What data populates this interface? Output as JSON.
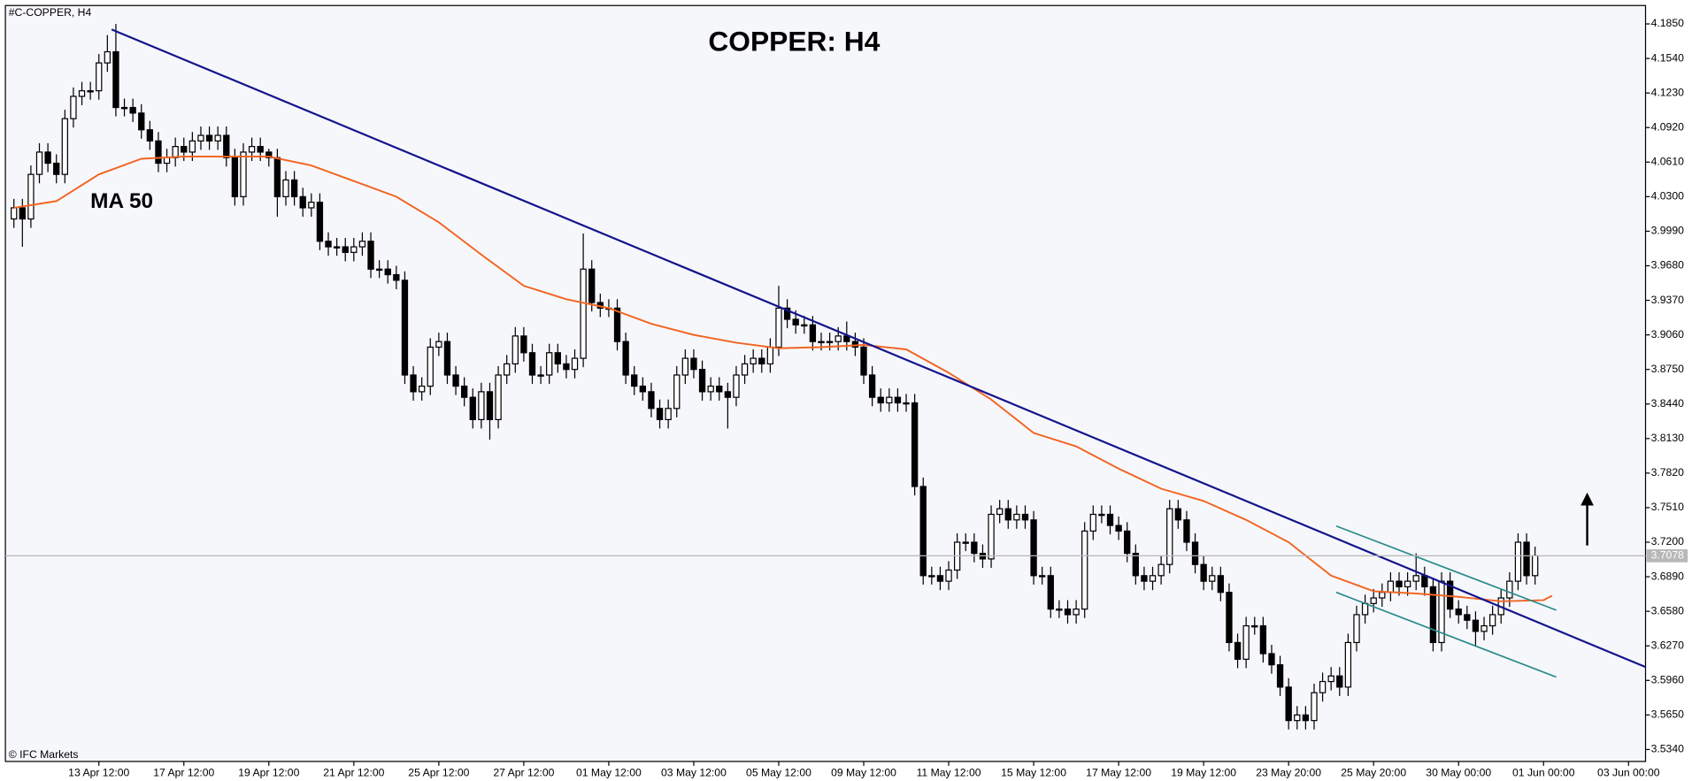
{
  "chart_data": {
    "type": "candlestick",
    "title": "COPPER: H4",
    "symbol_label": "#C-COPPER, H4",
    "watermark": "© IFC Markets",
    "annotations": [
      {
        "text": "MA 50",
        "x": 9,
        "y": 4.025
      }
    ],
    "last_price_label": "3.7078",
    "xlim": [
      -1,
      192
    ],
    "xticks": [
      {
        "value": 10,
        "label": "13 Apr 12:00"
      },
      {
        "value": 20,
        "label": "17 Apr 12:00"
      },
      {
        "value": 30,
        "label": "19 Apr 12:00"
      },
      {
        "value": 40,
        "label": "21 Apr 12:00"
      },
      {
        "value": 50,
        "label": "25 Apr 12:00"
      },
      {
        "value": 60,
        "label": "27 Apr 12:00"
      },
      {
        "value": 70,
        "label": "01 May 12:00"
      },
      {
        "value": 80,
        "label": "03 May 12:00"
      },
      {
        "value": 90,
        "label": "05 May 12:00"
      },
      {
        "value": 100,
        "label": "09 May 12:00"
      },
      {
        "value": 110,
        "label": "11 May 12:00"
      },
      {
        "value": 120,
        "label": "15 May 12:00"
      },
      {
        "value": 130,
        "label": "17 May 12:00"
      },
      {
        "value": 140,
        "label": "19 May 12:00"
      },
      {
        "value": 150,
        "label": "23 May 20:00"
      },
      {
        "value": 160,
        "label": "25 May 20:00"
      },
      {
        "value": 170,
        "label": "30 May 00:00"
      },
      {
        "value": 180,
        "label": "01 Jun 00:00"
      },
      {
        "value": 190,
        "label": "03 Jun 00:00"
      }
    ],
    "ylim": [
      3.5233,
      4.2015
    ],
    "yticks": [
      {
        "value": 4.185,
        "label": "4.1850"
      },
      {
        "value": 4.154,
        "label": "4.1540"
      },
      {
        "value": 4.123,
        "label": "4.1230"
      },
      {
        "value": 4.092,
        "label": "4.0920"
      },
      {
        "value": 4.061,
        "label": "4.0610"
      },
      {
        "value": 4.03,
        "label": "4.0300"
      },
      {
        "value": 3.999,
        "label": "3.9990"
      },
      {
        "value": 3.968,
        "label": "3.9680"
      },
      {
        "value": 3.937,
        "label": "3.9370"
      },
      {
        "value": 3.906,
        "label": "3.9060"
      },
      {
        "value": 3.875,
        "label": "3.8750"
      },
      {
        "value": 3.844,
        "label": "3.8440"
      },
      {
        "value": 3.813,
        "label": "3.8130"
      },
      {
        "value": 3.782,
        "label": "3.7820"
      },
      {
        "value": 3.751,
        "label": "3.7510"
      },
      {
        "value": 3.72,
        "label": "3.7200"
      },
      {
        "value": 3.689,
        "label": "3.6890"
      },
      {
        "value": 3.658,
        "label": "3.6580"
      },
      {
        "value": 3.627,
        "label": "3.6270"
      },
      {
        "value": 3.596,
        "label": "3.5960"
      },
      {
        "value": 3.565,
        "label": "3.5650"
      },
      {
        "value": 3.534,
        "label": "3.5340"
      }
    ],
    "up_color": "#ffffff",
    "down_color": "#000000",
    "open": [
      4.01,
      4.02,
      4.01,
      4.05,
      4.07,
      4.06,
      4.05,
      4.1,
      4.12,
      4.125,
      4.125,
      4.15,
      4.16,
      4.11,
      4.11,
      4.105,
      4.09,
      4.08,
      4.06,
      4.065,
      4.075,
      4.07,
      4.08,
      4.085,
      4.08,
      4.085,
      4.065,
      4.03,
      4.07,
      4.075,
      4.07,
      4.065,
      4.03,
      4.045,
      4.03,
      4.02,
      4.025,
      3.99,
      3.985,
      3.985,
      3.98,
      3.985,
      3.99,
      3.965,
      3.965,
      3.96,
      3.955,
      3.87,
      3.855,
      3.86,
      3.895,
      3.9,
      3.87,
      3.86,
      3.85,
      3.83,
      3.855,
      3.83,
      3.87,
      3.88,
      3.905,
      3.89,
      3.87,
      3.87,
      3.89,
      3.88,
      3.875,
      3.885,
      3.965,
      3.935,
      3.93,
      3.93,
      3.9,
      3.87,
      3.86,
      3.855,
      3.84,
      3.83,
      3.84,
      3.87,
      3.885,
      3.875,
      3.855,
      3.86,
      3.855,
      3.85,
      3.87,
      3.88,
      3.885,
      3.88,
      3.895,
      3.93,
      3.92,
      3.915,
      3.915,
      3.9,
      3.9,
      3.9,
      3.905,
      3.9,
      3.895,
      3.87,
      3.85,
      3.845,
      3.85,
      3.845,
      3.845,
      3.77,
      3.69,
      3.69,
      3.685,
      3.695,
      3.72,
      3.72,
      3.71,
      3.705,
      3.745,
      3.75,
      3.74,
      3.745,
      3.74,
      3.69,
      3.69,
      3.66,
      3.66,
      3.655,
      3.66,
      3.73,
      3.745,
      3.745,
      3.735,
      3.73,
      3.71,
      3.69,
      3.685,
      3.69,
      3.7,
      3.75,
      3.74,
      3.72,
      3.7,
      3.685,
      3.69,
      3.675,
      3.63,
      3.615,
      3.645,
      3.645,
      3.62,
      3.61,
      3.59,
      3.56,
      3.565,
      3.56,
      3.585,
      3.595,
      3.6,
      3.59,
      3.63,
      3.655,
      3.665,
      3.67,
      3.675,
      3.685,
      3.68,
      3.685,
      3.69,
      3.68,
      3.63,
      3.685,
      3.66,
      3.655,
      3.65,
      3.64,
      3.645,
      3.655,
      3.67,
      3.685,
      3.72,
      3.69
    ],
    "high": [
      4.028,
      4.028,
      4.058,
      4.078,
      4.078,
      4.068,
      4.108,
      4.128,
      4.133,
      4.133,
      4.158,
      4.175,
      4.185,
      4.118,
      4.118,
      4.113,
      4.098,
      4.088,
      4.073,
      4.083,
      4.083,
      4.088,
      4.093,
      4.093,
      4.093,
      4.093,
      4.073,
      4.078,
      4.083,
      4.083,
      4.073,
      4.073,
      4.053,
      4.053,
      4.038,
      4.033,
      4.033,
      3.998,
      3.993,
      3.993,
      3.993,
      3.998,
      3.998,
      3.973,
      3.973,
      3.968,
      3.963,
      3.878,
      3.868,
      3.903,
      3.908,
      3.908,
      3.878,
      3.868,
      3.858,
      3.863,
      3.863,
      3.878,
      3.888,
      3.913,
      3.913,
      3.898,
      3.878,
      3.898,
      3.898,
      3.888,
      3.893,
      3.997,
      3.973,
      3.943,
      3.938,
      3.938,
      3.908,
      3.878,
      3.868,
      3.863,
      3.848,
      3.848,
      3.878,
      3.893,
      3.893,
      3.883,
      3.868,
      3.868,
      3.863,
      3.878,
      3.888,
      3.893,
      3.893,
      3.903,
      3.95,
      3.938,
      3.928,
      3.923,
      3.923,
      3.908,
      3.908,
      3.913,
      3.918,
      3.908,
      3.903,
      3.878,
      3.858,
      3.858,
      3.858,
      3.853,
      3.853,
      3.778,
      3.698,
      3.698,
      3.703,
      3.728,
      3.728,
      3.728,
      3.718,
      3.753,
      3.758,
      3.758,
      3.753,
      3.753,
      3.748,
      3.698,
      3.698,
      3.668,
      3.668,
      3.668,
      3.738,
      3.753,
      3.753,
      3.753,
      3.743,
      3.738,
      3.718,
      3.698,
      3.698,
      3.708,
      3.758,
      3.758,
      3.748,
      3.728,
      3.708,
      3.698,
      3.698,
      3.683,
      3.638,
      3.653,
      3.653,
      3.653,
      3.628,
      3.618,
      3.598,
      3.573,
      3.573,
      3.593,
      3.603,
      3.608,
      3.608,
      3.638,
      3.663,
      3.673,
      3.678,
      3.683,
      3.693,
      3.693,
      3.693,
      3.71,
      3.698,
      3.688,
      3.693,
      3.693,
      3.668,
      3.663,
      3.658,
      3.653,
      3.663,
      3.678,
      3.693,
      3.728,
      3.728,
      3.716
    ],
    "low": [
      4.002,
      3.985,
      4.002,
      4.042,
      4.052,
      4.042,
      4.042,
      4.092,
      4.112,
      4.117,
      4.117,
      4.142,
      4.102,
      4.102,
      4.097,
      4.082,
      4.072,
      4.052,
      4.052,
      4.057,
      4.062,
      4.062,
      4.072,
      4.072,
      4.072,
      4.057,
      4.022,
      4.022,
      4.062,
      4.062,
      4.057,
      4.012,
      4.022,
      4.022,
      4.012,
      4.012,
      3.982,
      3.977,
      3.977,
      3.972,
      3.972,
      3.977,
      3.957,
      3.957,
      3.952,
      3.947,
      3.862,
      3.847,
      3.847,
      3.852,
      3.887,
      3.862,
      3.852,
      3.842,
      3.822,
      3.822,
      3.812,
      3.822,
      3.862,
      3.872,
      3.882,
      3.862,
      3.862,
      3.862,
      3.872,
      3.867,
      3.867,
      3.877,
      3.927,
      3.922,
      3.922,
      3.892,
      3.862,
      3.852,
      3.847,
      3.832,
      3.822,
      3.822,
      3.832,
      3.862,
      3.867,
      3.847,
      3.847,
      3.847,
      3.822,
      3.842,
      3.862,
      3.872,
      3.872,
      3.872,
      3.887,
      3.912,
      3.907,
      3.907,
      3.892,
      3.892,
      3.892,
      3.892,
      3.892,
      3.887,
      3.862,
      3.842,
      3.837,
      3.837,
      3.837,
      3.837,
      3.762,
      3.682,
      3.682,
      3.677,
      3.677,
      3.687,
      3.712,
      3.702,
      3.697,
      3.697,
      3.737,
      3.732,
      3.732,
      3.732,
      3.682,
      3.682,
      3.652,
      3.652,
      3.647,
      3.647,
      3.652,
      3.722,
      3.737,
      3.727,
      3.722,
      3.702,
      3.682,
      3.677,
      3.677,
      3.682,
      3.692,
      3.732,
      3.712,
      3.692,
      3.677,
      3.677,
      3.667,
      3.622,
      3.607,
      3.607,
      3.637,
      3.612,
      3.602,
      3.582,
      3.552,
      3.552,
      3.552,
      3.552,
      3.577,
      3.587,
      3.582,
      3.582,
      3.622,
      3.647,
      3.657,
      3.662,
      3.667,
      3.672,
      3.672,
      3.677,
      3.672,
      3.622,
      3.622,
      3.652,
      3.647,
      3.642,
      3.627,
      3.632,
      3.637,
      3.647,
      3.662,
      3.677,
      3.682,
      3.682
    ],
    "close": [
      4.02,
      4.01,
      4.05,
      4.07,
      4.06,
      4.05,
      4.1,
      4.12,
      4.125,
      4.125,
      4.15,
      4.16,
      4.11,
      4.11,
      4.105,
      4.09,
      4.08,
      4.06,
      4.065,
      4.075,
      4.07,
      4.08,
      4.085,
      4.08,
      4.085,
      4.065,
      4.03,
      4.07,
      4.075,
      4.07,
      4.065,
      4.03,
      4.045,
      4.03,
      4.02,
      4.025,
      3.99,
      3.985,
      3.985,
      3.98,
      3.985,
      3.99,
      3.965,
      3.965,
      3.96,
      3.955,
      3.87,
      3.855,
      3.86,
      3.895,
      3.9,
      3.87,
      3.86,
      3.85,
      3.83,
      3.855,
      3.83,
      3.87,
      3.88,
      3.905,
      3.89,
      3.87,
      3.87,
      3.89,
      3.88,
      3.875,
      3.885,
      3.965,
      3.935,
      3.93,
      3.93,
      3.9,
      3.87,
      3.86,
      3.855,
      3.84,
      3.83,
      3.84,
      3.87,
      3.885,
      3.875,
      3.855,
      3.86,
      3.855,
      3.85,
      3.87,
      3.88,
      3.885,
      3.88,
      3.895,
      3.93,
      3.92,
      3.915,
      3.915,
      3.9,
      3.9,
      3.9,
      3.905,
      3.9,
      3.895,
      3.87,
      3.85,
      3.845,
      3.85,
      3.845,
      3.845,
      3.77,
      3.69,
      3.69,
      3.685,
      3.695,
      3.72,
      3.72,
      3.71,
      3.705,
      3.745,
      3.75,
      3.74,
      3.745,
      3.74,
      3.69,
      3.69,
      3.66,
      3.66,
      3.655,
      3.66,
      3.73,
      3.745,
      3.745,
      3.735,
      3.73,
      3.71,
      3.69,
      3.685,
      3.69,
      3.7,
      3.75,
      3.74,
      3.72,
      3.7,
      3.685,
      3.69,
      3.675,
      3.63,
      3.615,
      3.645,
      3.645,
      3.62,
      3.61,
      3.59,
      3.56,
      3.565,
      3.56,
      3.585,
      3.595,
      3.6,
      3.59,
      3.63,
      3.655,
      3.665,
      3.67,
      3.675,
      3.685,
      3.68,
      3.685,
      3.69,
      3.68,
      3.63,
      3.685,
      3.66,
      3.655,
      3.65,
      3.64,
      3.645,
      3.655,
      3.67,
      3.685,
      3.72,
      3.69,
      3.7078
    ],
    "overlays": [
      {
        "color": "#f26522",
        "width": 1.6,
        "x": [
          0,
          5,
          10,
          15,
          20,
          25,
          30,
          35,
          40,
          45,
          50,
          55,
          60,
          65,
          70,
          75,
          80,
          85,
          90,
          95,
          100,
          105,
          110,
          115,
          120,
          125,
          130,
          135,
          140,
          145,
          150,
          155,
          160,
          165,
          170,
          175,
          180,
          181
        ],
        "values": [
          4.02,
          4.026,
          4.05,
          4.064,
          4.066,
          4.066,
          4.066,
          4.058,
          4.044,
          4.03,
          4.007,
          3.978,
          3.95,
          3.938,
          3.93,
          3.916,
          3.906,
          3.899,
          3.894,
          3.895,
          3.897,
          3.893,
          3.872,
          3.848,
          3.818,
          3.806,
          3.786,
          3.768,
          3.757,
          3.74,
          3.72,
          3.69,
          3.676,
          3.674,
          3.671,
          3.667,
          3.668,
          3.672
        ]
      },
      {
        "color": "#14148c",
        "width": 1.8,
        "x": [
          11.5,
          192
        ],
        "values": [
          4.18,
          3.608
        ]
      },
      {
        "color": "#2a8a8a",
        "width": 1.4,
        "x": [
          155.6,
          181.5
        ],
        "values": [
          3.7345,
          3.659
        ]
      },
      {
        "color": "#2a8a8a",
        "width": 1.4,
        "x": [
          155.6,
          181.5
        ],
        "values": [
          3.675,
          3.599
        ]
      }
    ]
  }
}
